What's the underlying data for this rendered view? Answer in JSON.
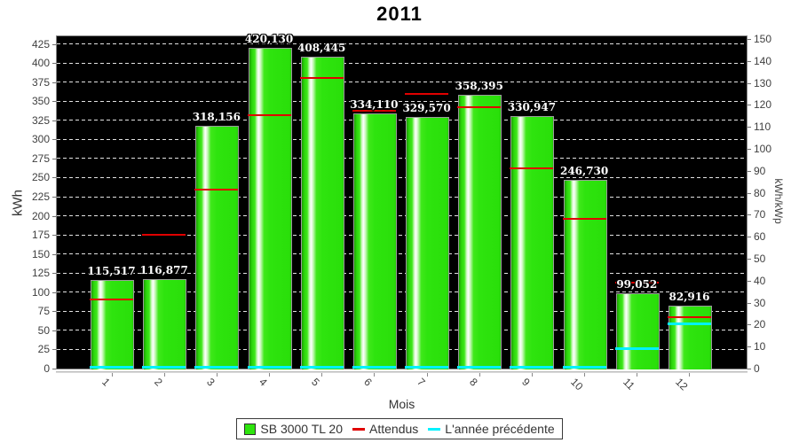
{
  "title": "2011",
  "axes": {
    "x_label": "Mois",
    "left_label": "kWh",
    "right_label": "kWh/kWp",
    "left_ticks": [
      0,
      25,
      50,
      75,
      100,
      125,
      150,
      175,
      200,
      225,
      250,
      275,
      300,
      325,
      350,
      375,
      400,
      425
    ],
    "right_ticks": [
      0,
      10,
      20,
      30,
      40,
      50,
      60,
      70,
      80,
      90,
      100,
      110,
      120,
      130,
      140,
      150
    ],
    "x_ticks": [
      "1",
      "2",
      "3",
      "4",
      "5",
      "6",
      "7",
      "8",
      "9",
      "10",
      "11",
      "12"
    ]
  },
  "colors": {
    "bar_green": "#2ee40e",
    "expected_red": "#e00000",
    "previous_cyan": "#00f2ff",
    "plot_background": "#000000",
    "grid_line": "#e2e2e2"
  },
  "legend": {
    "items": [
      {
        "label": "SB 3000 TL 20",
        "swatch": "square",
        "color": "#2ee40e"
      },
      {
        "label": "Attendus",
        "swatch": "line",
        "color": "#e00000"
      },
      {
        "label": "L'année précédente",
        "swatch": "line",
        "color": "#00f2ff"
      }
    ]
  },
  "chart_data": {
    "type": "bar",
    "title": "2011",
    "xlabel": "Mois",
    "ylabel_left": "kWh",
    "ylabel_right": "kWh/kWp",
    "categories": [
      "1",
      "2",
      "3",
      "4",
      "5",
      "6",
      "7",
      "8",
      "9",
      "10",
      "11",
      "12"
    ],
    "ylim_left": [
      0,
      435
    ],
    "ylim_right": [
      0,
      151
    ],
    "grid": "horizontal dashed white on black",
    "legend_position": "bottom-center",
    "series": [
      {
        "name": "SB 3000 TL 20",
        "type": "bar",
        "unit": "kWh",
        "color": "#2ee40e",
        "values": [
          115.517,
          116.877,
          318.156,
          420.13,
          408.445,
          334.11,
          329.57,
          358.395,
          330.947,
          246.73,
          99.052,
          82.916
        ],
        "labels": [
          "115,517",
          "116,877",
          "318,156",
          "420,130",
          "408,445",
          "334,110",
          "329,570",
          "358,395",
          "330,947",
          "246,730",
          "99,052",
          "82,916"
        ]
      },
      {
        "name": "Attendus",
        "type": "level-line",
        "unit": "kWh",
        "color": "#e00000",
        "values": [
          90,
          175,
          234,
          332,
          381,
          338,
          360,
          342,
          262,
          196,
          113,
          67
        ]
      },
      {
        "name": "L'année précédente",
        "type": "level-line",
        "unit": "kWh",
        "color": "#00f2ff",
        "values": [
          0,
          0,
          0,
          0,
          0,
          0,
          0,
          0,
          0,
          0,
          26,
          59
        ]
      }
    ]
  }
}
